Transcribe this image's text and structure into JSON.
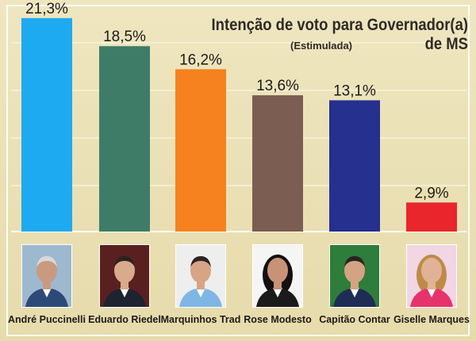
{
  "chart_data": {
    "type": "bar",
    "title": "Intenção de voto para Governador(a) de MS",
    "subtitle": "(Estimulada)",
    "categories": [
      "André Puccinelli",
      "Eduardo Riedel",
      "Marquinhos Trad",
      "Rose Modesto",
      "Capitão Contar",
      "Giselle Marques"
    ],
    "values": [
      21.3,
      18.5,
      16.2,
      13.6,
      13.1,
      2.9
    ],
    "value_labels": [
      "21,3%",
      "18,5%",
      "16,2%",
      "13,6%",
      "13,1%",
      "2,9%"
    ],
    "bar_colors": [
      "#1eaaf1",
      "#3f7c68",
      "#f5821f",
      "#7b5d52",
      "#25308f",
      "#e8262b"
    ],
    "ylim": [
      0,
      22
    ],
    "grid": true,
    "legend": "none"
  },
  "photos": {
    "André Puccinelli": "portrait-photo",
    "Eduardo Riedel": "portrait-photo",
    "Marquinhos Trad": "portrait-photo",
    "Rose Modesto": "portrait-photo",
    "Capitão Contar": "portrait-photo",
    "Giselle Marques": "portrait-photo"
  }
}
